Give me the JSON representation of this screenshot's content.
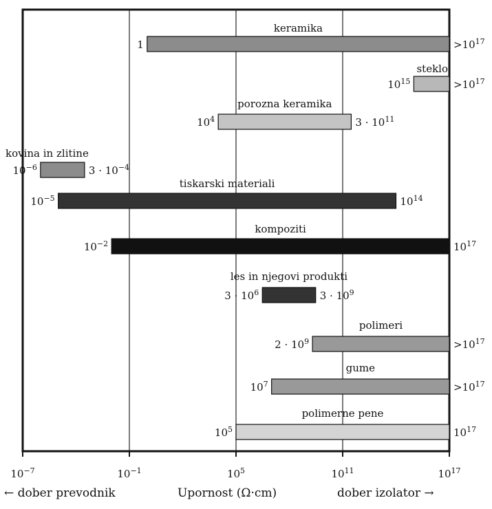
{
  "chart_data": {
    "type": "bar",
    "orientation": "horizontal-range",
    "x_scale": "log10",
    "xlim_exponent": [
      -7,
      17
    ],
    "x_ticks": [
      {
        "exp": -7,
        "label": "10",
        "sup": "−7"
      },
      {
        "exp": -1,
        "label": "10",
        "sup": "−1"
      },
      {
        "exp": 5,
        "label": "10",
        "sup": "5"
      },
      {
        "exp": 11,
        "label": "10",
        "sup": "11"
      },
      {
        "exp": 17,
        "label": "10",
        "sup": "17"
      }
    ],
    "grid": "vertical lines at 10^-1, 10^5, 10^11",
    "bars": [
      {
        "name": "keramika",
        "start_exp": 0,
        "end_exp": 17,
        "shade": "#8c8c8c",
        "start_label": {
          "main": "1",
          "sup": ""
        },
        "end_label": {
          "main": ">10",
          "sup": "17"
        }
      },
      {
        "name": "steklo",
        "start_exp": 15,
        "end_exp": 17,
        "shade": "#b8b8b8",
        "start_label": {
          "main": "10",
          "sup": "15"
        },
        "end_label": {
          "main": ">10",
          "sup": "17"
        }
      },
      {
        "name": "porozna keramika",
        "start_exp": 4,
        "end_exp": 11.48,
        "shade": "#c4c4c4",
        "start_label": {
          "main": "10",
          "sup": "4"
        },
        "end_label": {
          "main": "3 · 10",
          "sup": "11"
        }
      },
      {
        "name": "kovina in zlitine",
        "start_exp": -6,
        "end_exp": -3.52,
        "shade": "#8c8c8c",
        "start_label": {
          "main": "10",
          "sup": "−6"
        },
        "end_label": {
          "main": "3 · 10",
          "sup": "−4"
        }
      },
      {
        "name": "tiskarski materiali",
        "start_exp": -5,
        "end_exp": 14,
        "shade": "#333333",
        "start_label": {
          "main": "10",
          "sup": "−5"
        },
        "end_label": {
          "main": "10",
          "sup": "14"
        }
      },
      {
        "name": "kompoziti",
        "start_exp": -2,
        "end_exp": 17,
        "shade": "#111111",
        "start_label": {
          "main": "10",
          "sup": "−2"
        },
        "end_label": {
          "main": "10",
          "sup": "17"
        }
      },
      {
        "name": "les in njegovi produkti",
        "start_exp": 6.48,
        "end_exp": 9.48,
        "shade": "#333333",
        "start_label": {
          "main": "3 · 10",
          "sup": "6"
        },
        "end_label": {
          "main": "3 · 10",
          "sup": "9"
        }
      },
      {
        "name": "polimeri",
        "start_exp": 9.3,
        "end_exp": 17,
        "shade": "#999999",
        "start_label": {
          "main": "2 · 10",
          "sup": "9"
        },
        "end_label": {
          "main": ">10",
          "sup": "17"
        }
      },
      {
        "name": "gume",
        "start_exp": 7,
        "end_exp": 17,
        "shade": "#999999",
        "start_label": {
          "main": "10",
          "sup": "7"
        },
        "end_label": {
          "main": ">10",
          "sup": "17"
        }
      },
      {
        "name": "polimerne pene",
        "start_exp": 5,
        "end_exp": 17,
        "shade": "#d4d4d4",
        "start_label": {
          "main": "10",
          "sup": "5"
        },
        "end_label": {
          "main": "10",
          "sup": "17"
        }
      }
    ]
  },
  "footer": {
    "left": "← dober prevodnik",
    "center": "Upornost (Ω·cm)",
    "right": "dober izolator →"
  }
}
